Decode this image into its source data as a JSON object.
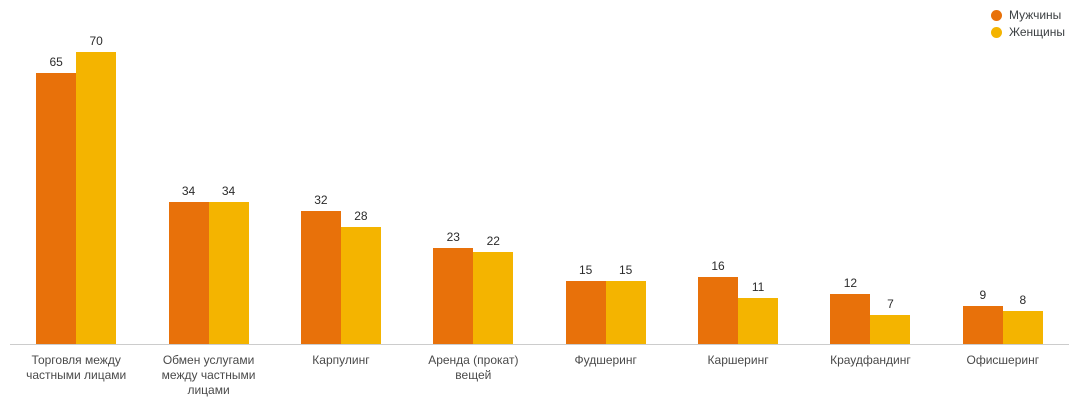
{
  "chart_data": {
    "type": "bar",
    "title": "",
    "xlabel": "",
    "ylabel": "",
    "grid": false,
    "legend_position": "top-right",
    "ylim": [
      0,
      75
    ],
    "categories": [
      "Торговля между частными лицами",
      "Обмен услугами между частными лицами",
      "Карпулинг",
      "Аренда (прокат) вещей",
      "Фудшеринг",
      "Каршеринг",
      "Краудфандинг",
      "Офисшеринг"
    ],
    "series": [
      {
        "key": "men",
        "name": "Мужчины",
        "color": "#e8710a",
        "values": [
          65,
          34,
          32,
          23,
          15,
          16,
          12,
          9
        ]
      },
      {
        "key": "women",
        "name": "Женщины",
        "color": "#f4b400",
        "values": [
          70,
          34,
          28,
          22,
          15,
          11,
          7,
          8
        ]
      }
    ]
  }
}
